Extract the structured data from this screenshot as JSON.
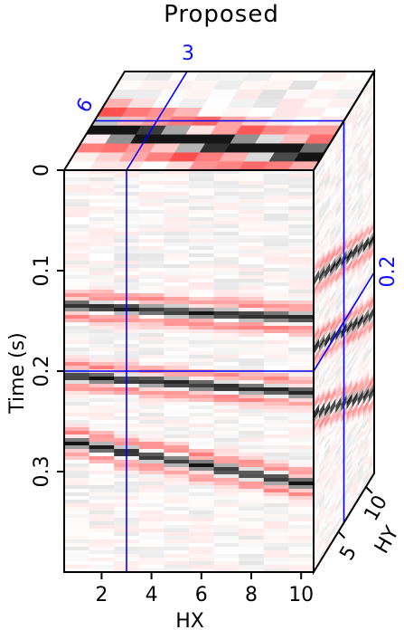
{
  "chart_data": {
    "type": "heatmap",
    "title": "Proposed",
    "xlabel": "HX",
    "ylabel": "Time (s)",
    "zlabel": "HY",
    "x_ticks": [
      "2",
      "4",
      "6",
      "8",
      "10"
    ],
    "x_range": [
      0.5,
      10.5
    ],
    "y_ticks": [
      "0",
      "0.1",
      "0.2",
      "0.3"
    ],
    "y_range": [
      0,
      0.4
    ],
    "z_ticks": [
      "5",
      "10"
    ],
    "z_range": [
      0.5,
      11.5
    ],
    "slice_labels": {
      "hx": "3",
      "hy": "6",
      "time": "0.2"
    },
    "slice_values": {
      "hx": 3,
      "hy": 6,
      "time": 0.2
    },
    "colormap": {
      "negative": "#000000",
      "zero": "#ffffff",
      "positive": "#ff2a2a"
    },
    "events": [
      {
        "t0": 0.135,
        "moveout_per_hx": 0.0014,
        "moveout_per_hy": 0.0052
      },
      {
        "t0": 0.205,
        "moveout_per_hx": 0.0018,
        "moveout_per_hy": 0.0058
      },
      {
        "t0": 0.272,
        "moveout_per_hx": 0.0044,
        "moveout_per_hy": 0.007
      }
    ]
  },
  "colors": {
    "slice_line": "#0000ff",
    "frame": "#000000"
  }
}
